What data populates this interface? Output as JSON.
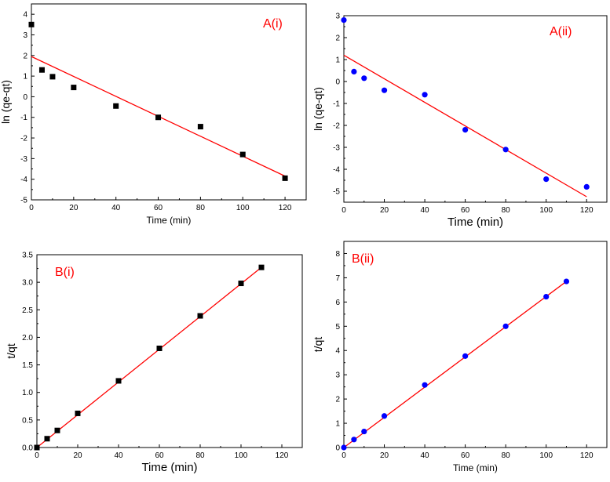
{
  "chart_data": [
    {
      "id": "Ai",
      "type": "scatter",
      "panel_label": "A(i)",
      "xlabel": "Time (min)",
      "ylabel": "ln (qe-qt)",
      "xlim": [
        0,
        130
      ],
      "ylim": [
        -5,
        4.5
      ],
      "xticks": [
        0,
        20,
        40,
        60,
        80,
        100,
        120
      ],
      "yticks": [
        -5,
        -4,
        -3,
        -2,
        -1,
        0,
        1,
        2,
        3,
        4
      ],
      "marker": "square",
      "marker_color": "#000000",
      "fit_color": "#ff0000",
      "x": [
        0,
        5,
        10,
        20,
        40,
        60,
        80,
        100,
        120
      ],
      "y": [
        3.5,
        1.3,
        0.97,
        0.45,
        -0.45,
        -1.0,
        -1.45,
        -2.8,
        -3.95
      ],
      "fit": {
        "x": [
          0,
          120
        ],
        "y": [
          1.95,
          -3.85
        ]
      }
    },
    {
      "id": "Aii",
      "type": "scatter",
      "panel_label": "A(ii)",
      "xlabel": "Time (min)",
      "ylabel": "ln (qe-qt)",
      "xlim": [
        0,
        130
      ],
      "ylim": [
        -5.5,
        3
      ],
      "xticks": [
        0,
        20,
        40,
        60,
        80,
        100,
        120
      ],
      "yticks": [
        -5,
        -4,
        -3,
        -2,
        -1,
        0,
        1,
        2,
        3
      ],
      "marker": "circle",
      "marker_color": "#0000ff",
      "fit_color": "#ff0000",
      "x": [
        0,
        5,
        10,
        20,
        40,
        60,
        80,
        100,
        120
      ],
      "y": [
        2.8,
        0.45,
        0.15,
        -0.4,
        -0.6,
        -2.2,
        -3.1,
        -4.45,
        -4.8
      ],
      "fit": {
        "x": [
          0,
          120
        ],
        "y": [
          1.2,
          -5.25
        ]
      }
    },
    {
      "id": "Bi",
      "type": "scatter",
      "panel_label": "B(i)",
      "xlabel": "Time (min)",
      "ylabel": "t/qt",
      "xlim": [
        0,
        130
      ],
      "ylim": [
        0,
        3.5
      ],
      "xticks": [
        0,
        20,
        40,
        60,
        80,
        100,
        120
      ],
      "yticks": [
        0.0,
        0.5,
        1.0,
        1.5,
        2.0,
        2.5,
        3.0,
        3.5
      ],
      "ytick_labels": [
        "0.0",
        "0.5",
        "1.0",
        "1.5",
        "2.0",
        "2.5",
        "3.0",
        "3.5"
      ],
      "marker": "square",
      "marker_color": "#000000",
      "fit_color": "#ff0000",
      "x": [
        0,
        5,
        10,
        20,
        40,
        60,
        80,
        100,
        110
      ],
      "y": [
        0.0,
        0.16,
        0.31,
        0.62,
        1.21,
        1.8,
        2.39,
        2.98,
        3.27
      ],
      "fit": {
        "x": [
          0,
          110
        ],
        "y": [
          0.0,
          3.27
        ]
      }
    },
    {
      "id": "Bii",
      "type": "scatter",
      "panel_label": "B(ii)",
      "xlabel": "Time (min)",
      "ylabel": "t/qt",
      "xlim": [
        0,
        130
      ],
      "ylim": [
        0,
        8.5
      ],
      "xticks": [
        0,
        20,
        40,
        60,
        80,
        100,
        120
      ],
      "yticks": [
        0,
        1,
        2,
        3,
        4,
        5,
        6,
        7,
        8
      ],
      "marker": "circle",
      "marker_color": "#0000ff",
      "fit_color": "#ff0000",
      "x": [
        0,
        5,
        10,
        20,
        40,
        60,
        80,
        100,
        110
      ],
      "y": [
        0.0,
        0.33,
        0.66,
        1.3,
        2.58,
        3.77,
        5.0,
        6.22,
        6.85
      ],
      "fit": {
        "x": [
          0,
          110
        ],
        "y": [
          0.0,
          6.85
        ]
      }
    }
  ]
}
